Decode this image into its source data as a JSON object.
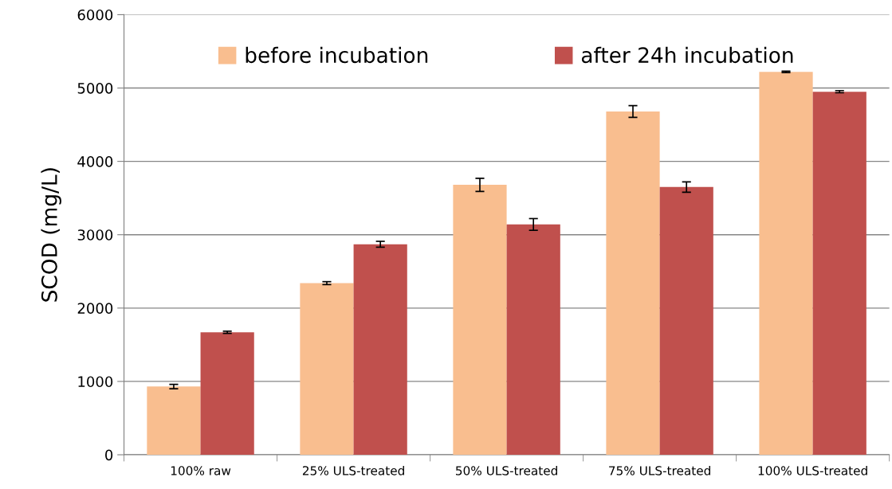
{
  "chart_data": {
    "type": "bar",
    "ylabel": "SCOD (mg/L)",
    "categories": [
      "100% raw",
      "25% ULS-treated",
      "50% ULS-treated",
      "75% ULS-treated",
      "100% ULS-treated"
    ],
    "series": [
      {
        "name": "before incubation",
        "color": "#f9be8f",
        "values": [
          930,
          2340,
          3680,
          4680,
          5220
        ],
        "errors": [
          30,
          20,
          90,
          80,
          10
        ]
      },
      {
        "name": "after 24h incubation",
        "color": "#c0504d",
        "values": [
          1670,
          2870,
          3140,
          3650,
          4950
        ],
        "errors": [
          15,
          40,
          80,
          70,
          15
        ]
      }
    ],
    "ylim": [
      0,
      6000
    ],
    "yticks": [
      0,
      1000,
      2000,
      3000,
      4000,
      5000,
      6000
    ],
    "grid": "y",
    "legend": "top"
  }
}
